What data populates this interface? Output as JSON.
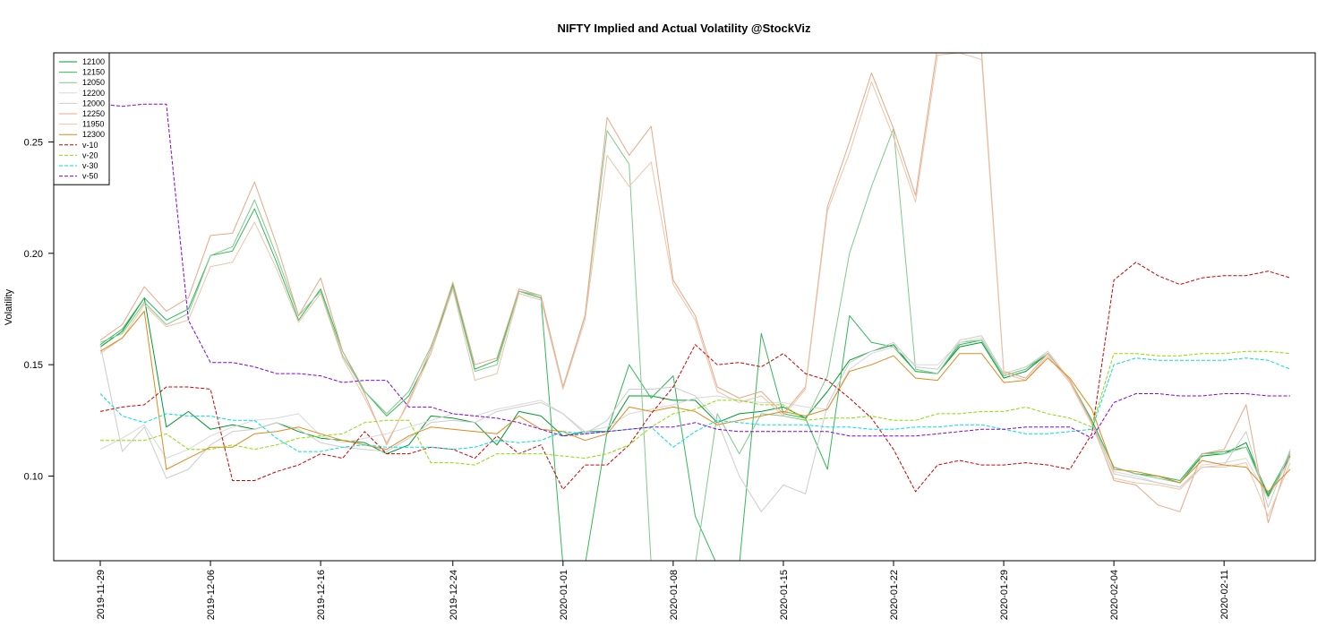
{
  "chart_data": {
    "type": "line",
    "title": "NIFTY Implied and Actual Volatility @StockViz",
    "xlabel": "",
    "ylabel": "Volatility",
    "ylim": [
      0.062,
      0.29
    ],
    "yticks": [
      0.1,
      0.15,
      0.2,
      0.25
    ],
    "ytick_labels": [
      "0.10",
      "0.15",
      "0.20",
      "0.25"
    ],
    "x_ticks": [
      {
        "index": 0,
        "label": "2019-11-29"
      },
      {
        "index": 5,
        "label": "2019-12-06"
      },
      {
        "index": 10,
        "label": "2019-12-16"
      },
      {
        "index": 16,
        "label": "2019-12-24"
      },
      {
        "index": 21,
        "label": "2020-01-01"
      },
      {
        "index": 26,
        "label": "2020-01-08"
      },
      {
        "index": 31,
        "label": "2020-01-15"
      },
      {
        "index": 36,
        "label": "2020-01-22"
      },
      {
        "index": 41,
        "label": "2020-01-29"
      },
      {
        "index": 46,
        "label": "2020-02-04"
      },
      {
        "index": 51,
        "label": "2020-02-11"
      }
    ],
    "n_points": 55,
    "grid": false,
    "legend_position": "top-left",
    "series": [
      {
        "name": "12100",
        "color": "#009a2e",
        "dash": "solid",
        "values": [
          0.158,
          0.165,
          0.18,
          0.122,
          0.129,
          0.121,
          0.123,
          0.121,
          0.124,
          0.12,
          0.117,
          0.116,
          0.115,
          0.11,
          0.114,
          0.127,
          0.126,
          0.124,
          0.114,
          0.129,
          0.127,
          0.118,
          0.12,
          0.12,
          0.136,
          0.136,
          0.134,
          0.134,
          0.124,
          0.128,
          0.129,
          0.131,
          0.126,
          0.138,
          0.152,
          0.156,
          0.159,
          0.147,
          0.146,
          0.158,
          0.16,
          0.144,
          0.147,
          0.155,
          0.143,
          0.125,
          0.104,
          0.101,
          0.1,
          0.097,
          0.109,
          0.11,
          0.115,
          0.091,
          0.109
        ]
      },
      {
        "name": "12150",
        "color": "#33b85a",
        "dash": "solid",
        "values": [
          0.159,
          0.166,
          0.18,
          0.17,
          0.175,
          0.199,
          0.201,
          0.22,
          0.196,
          0.17,
          0.184,
          0.156,
          0.138,
          0.127,
          0.136,
          0.155,
          0.186,
          0.148,
          0.152,
          0.183,
          0.18,
          0.06,
          0.06,
          0.12,
          0.15,
          0.135,
          0.145,
          0.082,
          0.06,
          0.06,
          0.164,
          0.128,
          0.126,
          0.103,
          0.172,
          0.16,
          0.158,
          0.147,
          0.146,
          0.159,
          0.161,
          0.145,
          0.148,
          0.155,
          0.143,
          0.125,
          0.104,
          0.101,
          0.1,
          0.098,
          0.11,
          0.111,
          0.113,
          0.092,
          0.11
        ]
      },
      {
        "name": "12050",
        "color": "#80c98e",
        "dash": "solid",
        "values": [
          0.16,
          0.164,
          0.178,
          0.168,
          0.173,
          0.199,
          0.203,
          0.224,
          0.199,
          0.172,
          0.183,
          0.154,
          0.138,
          0.128,
          0.138,
          0.158,
          0.185,
          0.147,
          0.15,
          0.183,
          0.181,
          0.14,
          0.172,
          0.255,
          0.24,
          0.06,
          0.06,
          0.06,
          0.128,
          0.11,
          0.128,
          0.127,
          0.125,
          0.145,
          0.2,
          0.23,
          0.256,
          0.148,
          0.146,
          0.16,
          0.161,
          0.145,
          0.148,
          0.156,
          0.143,
          0.124,
          0.104,
          0.101,
          0.099,
          0.097,
          0.11,
          0.11,
          0.113,
          0.09,
          0.111
        ]
      },
      {
        "name": "12200",
        "color": "#d8d8d8",
        "dash": "solid",
        "values": [
          0.112,
          0.117,
          0.123,
          0.108,
          0.112,
          0.118,
          0.122,
          0.125,
          0.126,
          0.128,
          0.118,
          0.115,
          0.117,
          0.119,
          0.122,
          0.125,
          0.128,
          0.127,
          0.13,
          0.132,
          0.134,
          0.128,
          0.12,
          0.122,
          0.128,
          0.13,
          0.132,
          0.135,
          0.136,
          0.134,
          0.133,
          0.133,
          0.131,
          0.13,
          0.148,
          0.155,
          0.158,
          0.15,
          0.15,
          0.16,
          0.162,
          0.146,
          0.149,
          0.156,
          0.143,
          0.124,
          0.102,
          0.1,
          0.097,
          0.095,
          0.105,
          0.106,
          0.108,
          0.09,
          0.108
        ]
      },
      {
        "name": "12000",
        "color": "#cccccc",
        "dash": "solid",
        "values": [
          0.159,
          0.111,
          0.122,
          0.099,
          0.103,
          0.114,
          0.12,
          0.121,
          0.124,
          0.121,
          0.115,
          0.113,
          0.112,
          0.111,
          0.117,
          0.124,
          0.125,
          0.124,
          0.129,
          0.131,
          0.133,
          0.128,
          0.119,
          0.125,
          0.139,
          0.139,
          0.14,
          0.136,
          0.125,
          0.1,
          0.084,
          0.096,
          0.092,
          0.132,
          0.151,
          0.156,
          0.16,
          0.149,
          0.148,
          0.161,
          0.163,
          0.146,
          0.149,
          0.155,
          0.143,
          0.124,
          0.101,
          0.099,
          0.097,
          0.095,
          0.104,
          0.105,
          0.12,
          0.086,
          0.112
        ]
      },
      {
        "name": "12250",
        "color": "#e6a888",
        "dash": "solid",
        "values": [
          0.161,
          0.168,
          0.185,
          0.174,
          0.18,
          0.208,
          0.209,
          0.232,
          0.204,
          0.172,
          0.189,
          0.156,
          0.137,
          0.114,
          0.134,
          0.157,
          0.187,
          0.15,
          0.153,
          0.184,
          0.181,
          0.14,
          0.172,
          0.261,
          0.244,
          0.257,
          0.188,
          0.172,
          0.14,
          0.135,
          0.138,
          0.128,
          0.14,
          0.221,
          0.25,
          0.281,
          0.256,
          0.226,
          0.293,
          0.293,
          0.29,
          0.147,
          0.144,
          0.155,
          0.143,
          0.124,
          0.098,
          0.096,
          0.087,
          0.084,
          0.11,
          0.112,
          0.132,
          0.079,
          0.11
        ]
      },
      {
        "name": "11950",
        "color": "#edc4a8",
        "dash": "solid",
        "values": [
          0.155,
          0.162,
          0.177,
          0.167,
          0.17,
          0.194,
          0.196,
          0.214,
          0.193,
          0.169,
          0.182,
          0.153,
          0.135,
          0.115,
          0.133,
          0.155,
          0.184,
          0.143,
          0.146,
          0.182,
          0.179,
          0.139,
          0.17,
          0.244,
          0.23,
          0.241,
          0.186,
          0.17,
          0.138,
          0.133,
          0.136,
          0.127,
          0.139,
          0.219,
          0.245,
          0.277,
          0.252,
          0.223,
          0.289,
          0.29,
          0.287,
          0.146,
          0.143,
          0.154,
          0.142,
          0.123,
          0.099,
          0.097,
          0.096,
          0.094,
          0.104,
          0.104,
          0.106,
          0.082,
          0.106
        ]
      },
      {
        "name": "12300",
        "color": "#de8a1e",
        "dash": "solid",
        "values": [
          0.156,
          0.162,
          0.174,
          0.103,
          0.108,
          0.113,
          0.113,
          0.119,
          0.12,
          0.122,
          0.119,
          0.116,
          0.114,
          0.112,
          0.118,
          0.122,
          0.121,
          0.12,
          0.119,
          0.127,
          0.121,
          0.12,
          0.116,
          0.119,
          0.131,
          0.129,
          0.131,
          0.129,
          0.123,
          0.125,
          0.127,
          0.129,
          0.127,
          0.13,
          0.147,
          0.15,
          0.154,
          0.144,
          0.143,
          0.155,
          0.155,
          0.142,
          0.143,
          0.153,
          0.144,
          0.13,
          0.103,
          0.102,
          0.1,
          0.097,
          0.107,
          0.105,
          0.104,
          0.093,
          0.103
        ]
      },
      {
        "name": "v-10",
        "color": "#cc0000",
        "dash": "dashed",
        "values": [
          0.129,
          0.131,
          0.132,
          0.14,
          0.14,
          0.139,
          0.098,
          0.098,
          0.102,
          0.105,
          0.11,
          0.108,
          0.12,
          0.11,
          0.11,
          0.113,
          0.112,
          0.108,
          0.118,
          0.11,
          0.114,
          0.094,
          0.105,
          0.105,
          0.114,
          0.128,
          0.14,
          0.159,
          0.15,
          0.151,
          0.149,
          0.155,
          0.146,
          0.143,
          0.135,
          0.126,
          0.112,
          0.093,
          0.105,
          0.107,
          0.105,
          0.105,
          0.106,
          0.105,
          0.103,
          0.119,
          0.188,
          0.196,
          0.19,
          0.186,
          0.189,
          0.19,
          0.19,
          0.192,
          0.189
        ]
      },
      {
        "name": "v-20",
        "color": "#88dd00",
        "dash": "dashed",
        "values": [
          0.116,
          0.116,
          0.116,
          0.119,
          0.112,
          0.112,
          0.114,
          0.112,
          0.114,
          0.117,
          0.118,
          0.119,
          0.124,
          0.125,
          0.125,
          0.106,
          0.106,
          0.105,
          0.11,
          0.11,
          0.11,
          0.109,
          0.108,
          0.11,
          0.114,
          0.122,
          0.128,
          0.13,
          0.134,
          0.134,
          0.132,
          0.132,
          0.125,
          0.126,
          0.126,
          0.127,
          0.125,
          0.125,
          0.128,
          0.128,
          0.129,
          0.129,
          0.131,
          0.128,
          0.126,
          0.122,
          0.155,
          0.155,
          0.154,
          0.154,
          0.155,
          0.155,
          0.156,
          0.156,
          0.155
        ]
      },
      {
        "name": "v-30",
        "color": "#00dddd",
        "dash": "dashed",
        "values": [
          0.137,
          0.127,
          0.124,
          0.128,
          0.127,
          0.127,
          0.125,
          0.125,
          0.117,
          0.111,
          0.111,
          0.113,
          0.114,
          0.113,
          0.113,
          0.113,
          0.112,
          0.113,
          0.116,
          0.115,
          0.116,
          0.12,
          0.119,
          0.12,
          0.121,
          0.122,
          0.113,
          0.12,
          0.125,
          0.124,
          0.123,
          0.123,
          0.123,
          0.122,
          0.122,
          0.121,
          0.121,
          0.122,
          0.122,
          0.123,
          0.123,
          0.121,
          0.119,
          0.119,
          0.12,
          0.121,
          0.15,
          0.153,
          0.152,
          0.152,
          0.152,
          0.152,
          0.153,
          0.152,
          0.148
        ]
      },
      {
        "name": "v-50",
        "color": "#8800dd",
        "dash": "dashed",
        "values": [
          0.267,
          0.266,
          0.267,
          0.267,
          0.17,
          0.151,
          0.151,
          0.149,
          0.146,
          0.146,
          0.145,
          0.142,
          0.143,
          0.143,
          0.131,
          0.131,
          0.128,
          0.127,
          0.126,
          0.124,
          0.121,
          0.118,
          0.119,
          0.12,
          0.121,
          0.122,
          0.122,
          0.124,
          0.121,
          0.12,
          0.12,
          0.12,
          0.12,
          0.12,
          0.118,
          0.118,
          0.118,
          0.118,
          0.119,
          0.12,
          0.121,
          0.121,
          0.122,
          0.122,
          0.122,
          0.117,
          0.133,
          0.137,
          0.137,
          0.136,
          0.136,
          0.137,
          0.137,
          0.136,
          0.136
        ]
      }
    ]
  }
}
